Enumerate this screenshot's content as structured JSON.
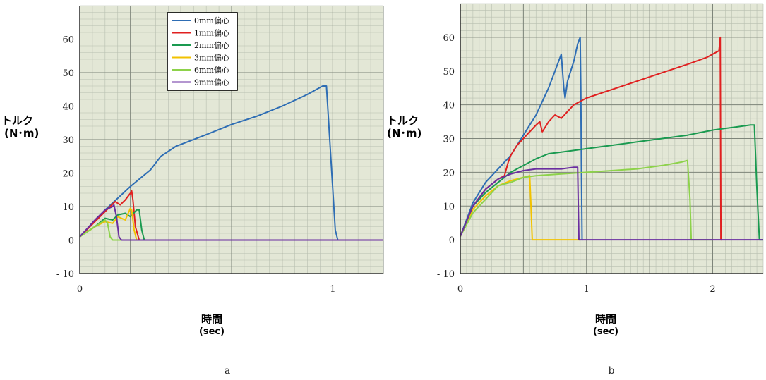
{
  "chart_data": [
    {
      "type": "line",
      "panel_label": "a",
      "ylabel": "トルク",
      "ylabel_unit": "(N･m)",
      "xlabel": "時間",
      "xlabel_unit": "(sec)",
      "xlim": [
        0,
        1.2
      ],
      "ylim": [
        -10,
        70
      ],
      "yticks": [
        -10,
        0,
        10,
        20,
        30,
        40,
        50,
        60
      ],
      "ytick_labels": [
        "- 10",
        "0",
        "10",
        "20",
        "30",
        "40",
        "50",
        "60"
      ],
      "xticks": [
        0,
        1
      ],
      "xtick_labels": [
        "0",
        "1"
      ],
      "grid": true,
      "legend_position": "top-center",
      "series": [
        {
          "name": "0mm偏心",
          "color": "#2e6db4",
          "points": [
            [
              0,
              1
            ],
            [
              0.1,
              9
            ],
            [
              0.2,
              16
            ],
            [
              0.28,
              21
            ],
            [
              0.32,
              25
            ],
            [
              0.38,
              28
            ],
            [
              0.5,
              31.5
            ],
            [
              0.6,
              34.5
            ],
            [
              0.7,
              37
            ],
            [
              0.8,
              40
            ],
            [
              0.9,
              43.5
            ],
            [
              0.96,
              46
            ],
            [
              0.975,
              46
            ],
            [
              1.01,
              3
            ],
            [
              1.02,
              0
            ],
            [
              1.2,
              0
            ]
          ]
        },
        {
          "name": "1mm偏心",
          "color": "#e02020",
          "points": [
            [
              0,
              1
            ],
            [
              0.08,
              7
            ],
            [
              0.12,
              10
            ],
            [
              0.14,
              11.5
            ],
            [
              0.16,
              10.5
            ],
            [
              0.18,
              12
            ],
            [
              0.2,
              14
            ],
            [
              0.205,
              14.7
            ],
            [
              0.21,
              12
            ],
            [
              0.22,
              4
            ],
            [
              0.235,
              0
            ],
            [
              1.2,
              0
            ]
          ]
        },
        {
          "name": "2mm偏心",
          "color": "#1a9a50",
          "points": [
            [
              0,
              1
            ],
            [
              0.06,
              4
            ],
            [
              0.1,
              6.5
            ],
            [
              0.13,
              6
            ],
            [
              0.15,
              7.5
            ],
            [
              0.18,
              8
            ],
            [
              0.2,
              7
            ],
            [
              0.225,
              9
            ],
            [
              0.235,
              9
            ],
            [
              0.245,
              3
            ],
            [
              0.255,
              0
            ],
            [
              1.2,
              0
            ]
          ]
        },
        {
          "name": "3mm偏心",
          "color": "#f2c200",
          "points": [
            [
              0,
              1
            ],
            [
              0.06,
              4
            ],
            [
              0.1,
              5.5
            ],
            [
              0.13,
              5
            ],
            [
              0.15,
              7
            ],
            [
              0.18,
              6
            ],
            [
              0.2,
              9.5
            ],
            [
              0.205,
              9
            ],
            [
              0.215,
              3
            ],
            [
              0.225,
              0
            ],
            [
              1.2,
              0
            ]
          ]
        },
        {
          "name": "6mm偏心",
          "color": "#8dd24a",
          "points": [
            [
              0,
              1
            ],
            [
              0.04,
              3
            ],
            [
              0.08,
              5
            ],
            [
              0.1,
              6
            ],
            [
              0.11,
              5
            ],
            [
              0.12,
              1
            ],
            [
              0.13,
              0
            ],
            [
              1.2,
              0
            ]
          ]
        },
        {
          "name": "9mm偏心",
          "color": "#6a2ea0",
          "points": [
            [
              0,
              1
            ],
            [
              0.06,
              6
            ],
            [
              0.1,
              9
            ],
            [
              0.13,
              10
            ],
            [
              0.135,
              10.5
            ],
            [
              0.145,
              7
            ],
            [
              0.155,
              1
            ],
            [
              0.165,
              0
            ],
            [
              1.2,
              0
            ]
          ]
        }
      ]
    },
    {
      "type": "line",
      "panel_label": "b",
      "ylabel": "トルク",
      "ylabel_unit": "(N･m)",
      "xlabel": "時間",
      "xlabel_unit": "(sec)",
      "xlim": [
        0,
        2.4
      ],
      "ylim": [
        -10,
        70
      ],
      "yticks": [
        -10,
        0,
        10,
        20,
        30,
        40,
        50,
        60
      ],
      "ytick_labels": [
        "- 10",
        "0",
        "10",
        "20",
        "30",
        "40",
        "50",
        "60"
      ],
      "xticks": [
        0,
        1,
        2
      ],
      "xtick_labels": [
        "0",
        "1",
        "2"
      ],
      "grid": true,
      "series": [
        {
          "color": "#2e6db4",
          "points": [
            [
              0,
              1
            ],
            [
              0.1,
              11
            ],
            [
              0.2,
              17
            ],
            [
              0.3,
              21
            ],
            [
              0.4,
              25
            ],
            [
              0.5,
              31
            ],
            [
              0.55,
              34
            ],
            [
              0.6,
              37
            ],
            [
              0.65,
              41
            ],
            [
              0.7,
              45
            ],
            [
              0.76,
              51
            ],
            [
              0.8,
              55
            ],
            [
              0.82,
              45
            ],
            [
              0.83,
              42
            ],
            [
              0.85,
              47
            ],
            [
              0.9,
              53
            ],
            [
              0.93,
              58
            ],
            [
              0.95,
              60
            ],
            [
              0.955,
              45
            ],
            [
              0.96,
              20
            ],
            [
              0.965,
              0
            ],
            [
              0.97,
              0
            ]
          ]
        },
        {
          "color": "#e02020",
          "points": [
            [
              0,
              1
            ],
            [
              0.1,
              10
            ],
            [
              0.2,
              15
            ],
            [
              0.3,
              18
            ],
            [
              0.35,
              19
            ],
            [
              0.38,
              23
            ],
            [
              0.4,
              25
            ],
            [
              0.45,
              28
            ],
            [
              0.5,
              30
            ],
            [
              0.55,
              32
            ],
            [
              0.6,
              34
            ],
            [
              0.63,
              35
            ],
            [
              0.65,
              32
            ],
            [
              0.7,
              35
            ],
            [
              0.75,
              37
            ],
            [
              0.8,
              36
            ],
            [
              0.85,
              38
            ],
            [
              0.9,
              40
            ],
            [
              1.0,
              42
            ],
            [
              1.2,
              44.5
            ],
            [
              1.4,
              47
            ],
            [
              1.6,
              49.5
            ],
            [
              1.8,
              52
            ],
            [
              1.95,
              54
            ],
            [
              2.0,
              55
            ],
            [
              2.05,
              56
            ],
            [
              2.06,
              60
            ],
            [
              2.065,
              0
            ],
            [
              2.07,
              0
            ]
          ]
        },
        {
          "color": "#1a9a50",
          "points": [
            [
              0,
              1
            ],
            [
              0.1,
              10
            ],
            [
              0.2,
              14
            ],
            [
              0.3,
              17
            ],
            [
              0.4,
              20
            ],
            [
              0.5,
              22
            ],
            [
              0.6,
              24
            ],
            [
              0.7,
              25.5
            ],
            [
              0.8,
              26
            ],
            [
              1.0,
              27
            ],
            [
              1.2,
              28
            ],
            [
              1.4,
              29
            ],
            [
              1.6,
              30
            ],
            [
              1.8,
              31
            ],
            [
              2.0,
              32.5
            ],
            [
              2.2,
              33.5
            ],
            [
              2.3,
              34
            ],
            [
              2.33,
              34
            ],
            [
              2.35,
              15
            ],
            [
              2.37,
              0
            ],
            [
              2.4,
              0
            ]
          ]
        },
        {
          "color": "#f2c200",
          "points": [
            [
              0,
              1
            ],
            [
              0.1,
              9
            ],
            [
              0.2,
              13
            ],
            [
              0.3,
              16
            ],
            [
              0.4,
              17.5
            ],
            [
              0.5,
              18.5
            ],
            [
              0.55,
              19
            ],
            [
              0.56,
              10
            ],
            [
              0.57,
              0
            ],
            [
              0.95,
              0
            ]
          ]
        },
        {
          "color": "#8dd24a",
          "points": [
            [
              0,
              1
            ],
            [
              0.1,
              8
            ],
            [
              0.2,
              12
            ],
            [
              0.3,
              16
            ],
            [
              0.4,
              17
            ],
            [
              0.5,
              18.5
            ],
            [
              0.6,
              19
            ],
            [
              0.8,
              19.5
            ],
            [
              1.0,
              20
            ],
            [
              1.2,
              20.5
            ],
            [
              1.4,
              21
            ],
            [
              1.6,
              22
            ],
            [
              1.75,
              23
            ],
            [
              1.8,
              23.5
            ],
            [
              1.82,
              12
            ],
            [
              1.83,
              0
            ],
            [
              2.0,
              0
            ]
          ]
        },
        {
          "color": "#6a2ea0",
          "points": [
            [
              0,
              1
            ],
            [
              0.1,
              10
            ],
            [
              0.2,
              15
            ],
            [
              0.3,
              18
            ],
            [
              0.4,
              19.5
            ],
            [
              0.5,
              20.5
            ],
            [
              0.6,
              21
            ],
            [
              0.8,
              21
            ],
            [
              0.9,
              21.5
            ],
            [
              0.93,
              21.5
            ],
            [
              0.935,
              10
            ],
            [
              0.94,
              0
            ],
            [
              2.4,
              0
            ]
          ]
        }
      ]
    }
  ]
}
